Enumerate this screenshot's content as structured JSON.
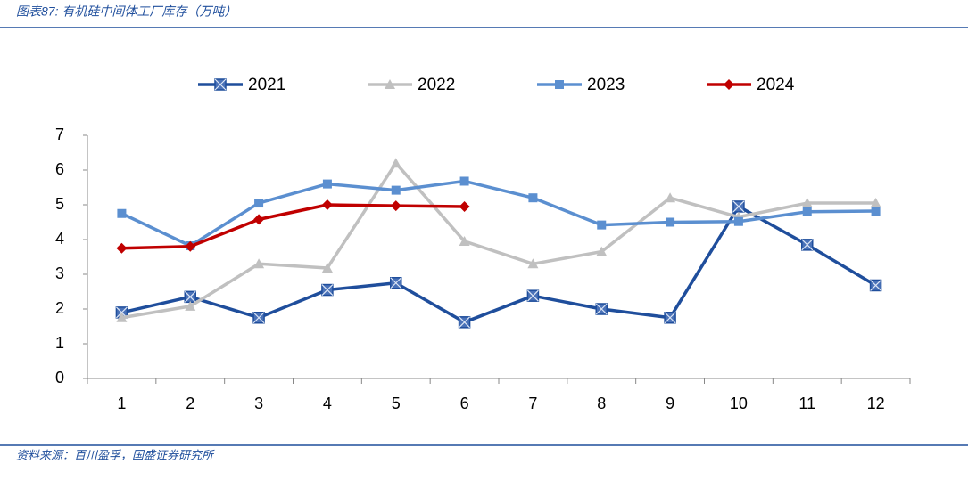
{
  "chart_data": {
    "type": "line",
    "title": "图表87: 有机硅中间体工厂库存（万吨）",
    "source": "资料来源：百川盈孚，国盛证券研究所",
    "categories": [
      "1",
      "2",
      "3",
      "4",
      "5",
      "6",
      "7",
      "8",
      "9",
      "10",
      "11",
      "12"
    ],
    "series": [
      {
        "name": "2021",
        "color": "#1f4e9c",
        "marker": "x-square",
        "values": [
          1.9,
          2.35,
          1.75,
          2.55,
          2.75,
          1.62,
          2.38,
          2.0,
          1.75,
          4.95,
          3.85,
          2.68
        ]
      },
      {
        "name": "2022",
        "color": "#c0c0c0",
        "marker": "triangle",
        "values": [
          1.75,
          2.08,
          3.3,
          3.18,
          6.2,
          3.95,
          3.3,
          3.65,
          5.2,
          4.65,
          5.05,
          5.05
        ]
      },
      {
        "name": "2023",
        "color": "#5b8fd0",
        "marker": "square",
        "values": [
          4.75,
          3.82,
          5.05,
          5.6,
          5.42,
          5.68,
          5.2,
          4.42,
          4.5,
          4.52,
          4.8,
          4.82
        ]
      },
      {
        "name": "2024",
        "color": "#c00000",
        "marker": "diamond",
        "values": [
          3.75,
          3.8,
          4.58,
          5.0,
          4.97,
          4.95,
          null,
          null,
          null,
          null,
          null,
          null
        ]
      }
    ],
    "ylim": [
      0,
      7
    ],
    "yticks": [
      0,
      1,
      2,
      3,
      4,
      5,
      6,
      7
    ],
    "grid": false,
    "legend": "top"
  }
}
